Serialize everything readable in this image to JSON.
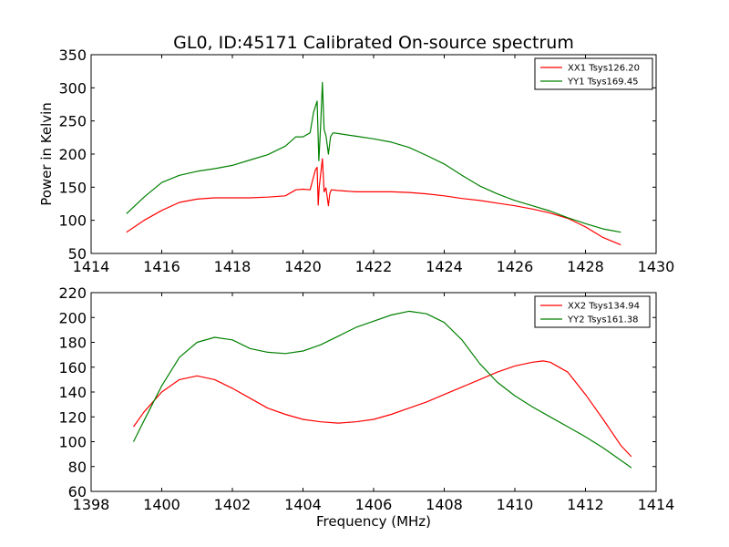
{
  "chart_data": [
    {
      "type": "line",
      "title": "GL0, ID:45171 Calibrated On-source spectrum",
      "xlabel": "",
      "ylabel": "Power in Kelvin",
      "xlim": [
        1414,
        1430
      ],
      "ylim": [
        50,
        350
      ],
      "xticks": [
        "1414",
        "1416",
        "1418",
        "1420",
        "1422",
        "1424",
        "1426",
        "1428",
        "1430"
      ],
      "yticks": [
        "50",
        "100",
        "150",
        "200",
        "250",
        "300",
        "350"
      ],
      "grid": false,
      "legend_position": "top-right",
      "series": [
        {
          "name": "XX1 Tsys126.20",
          "color": "#ff0000",
          "x": [
            1415.0,
            1415.5,
            1416.0,
            1416.5,
            1417.0,
            1417.5,
            1418.0,
            1418.5,
            1419.0,
            1419.5,
            1419.8,
            1420.0,
            1420.2,
            1420.35,
            1420.4,
            1420.43,
            1420.46,
            1420.55,
            1420.6,
            1420.65,
            1420.72,
            1420.76,
            1420.8,
            1421.0,
            1421.5,
            1422.0,
            1422.5,
            1423.0,
            1423.5,
            1424.0,
            1424.5,
            1425.0,
            1425.5,
            1426.0,
            1426.5,
            1427.0,
            1427.5,
            1428.0,
            1428.5,
            1429.0
          ],
          "y": [
            82,
            100,
            115,
            127,
            132,
            134,
            134,
            134,
            135,
            137,
            146,
            147,
            146,
            176,
            180,
            123,
            150,
            193,
            143,
            149,
            122,
            140,
            146,
            145,
            143,
            143,
            143,
            142,
            140,
            137,
            133,
            130,
            126,
            122,
            117,
            111,
            103,
            90,
            74,
            63
          ]
        },
        {
          "name": "YY1 Tsys169.45",
          "color": "#008000",
          "x": [
            1415.0,
            1415.5,
            1416.0,
            1416.5,
            1417.0,
            1417.5,
            1418.0,
            1418.5,
            1419.0,
            1419.5,
            1419.8,
            1420.0,
            1420.2,
            1420.3,
            1420.4,
            1420.45,
            1420.5,
            1420.55,
            1420.6,
            1420.65,
            1420.72,
            1420.78,
            1420.85,
            1421.0,
            1421.5,
            1422.0,
            1422.5,
            1423.0,
            1423.5,
            1424.0,
            1424.5,
            1425.0,
            1425.5,
            1426.0,
            1426.5,
            1427.0,
            1427.5,
            1428.0,
            1428.5,
            1429.0
          ],
          "y": [
            110,
            135,
            157,
            168,
            174,
            178,
            183,
            191,
            199,
            212,
            226,
            226,
            232,
            263,
            280,
            190,
            244,
            308,
            237,
            228,
            200,
            226,
            232,
            231,
            227,
            223,
            218,
            210,
            198,
            185,
            168,
            152,
            140,
            130,
            122,
            114,
            104,
            95,
            87,
            82
          ]
        }
      ]
    },
    {
      "type": "line",
      "title": "",
      "xlabel": "Frequency (MHz)",
      "ylabel": "",
      "xlim": [
        1398,
        1414
      ],
      "ylim": [
        60,
        220
      ],
      "xticks": [
        "1398",
        "1400",
        "1402",
        "1404",
        "1406",
        "1408",
        "1410",
        "1412",
        "1414"
      ],
      "yticks": [
        "60",
        "80",
        "100",
        "120",
        "140",
        "160",
        "180",
        "200",
        "220"
      ],
      "grid": false,
      "legend_position": "top-right",
      "series": [
        {
          "name": "XX2 Tsys134.94",
          "color": "#ff0000",
          "x": [
            1399.2,
            1399.5,
            1400.0,
            1400.5,
            1401.0,
            1401.5,
            1402.0,
            1402.5,
            1403.0,
            1403.5,
            1404.0,
            1404.5,
            1405.0,
            1405.5,
            1406.0,
            1406.5,
            1407.0,
            1407.5,
            1408.0,
            1408.5,
            1409.0,
            1409.5,
            1410.0,
            1410.5,
            1410.8,
            1411.0,
            1411.5,
            1412.0,
            1412.5,
            1413.0,
            1413.3
          ],
          "y": [
            112,
            124,
            140,
            150,
            153,
            150,
            143,
            135,
            127,
            122,
            118,
            116,
            115,
            116,
            118,
            122,
            127,
            132,
            138,
            144,
            150,
            156,
            161,
            164,
            165,
            164,
            156,
            138,
            118,
            97,
            88
          ]
        },
        {
          "name": "YY2 Tsys161.38",
          "color": "#008000",
          "x": [
            1399.2,
            1399.5,
            1400.0,
            1400.5,
            1401.0,
            1401.5,
            1402.0,
            1402.5,
            1403.0,
            1403.5,
            1404.0,
            1404.5,
            1405.0,
            1405.5,
            1406.0,
            1406.5,
            1407.0,
            1407.5,
            1408.0,
            1408.5,
            1409.0,
            1409.5,
            1410.0,
            1410.5,
            1411.0,
            1411.5,
            1412.0,
            1412.5,
            1413.0,
            1413.3
          ],
          "y": [
            100,
            117,
            145,
            168,
            180,
            184,
            182,
            175,
            172,
            171,
            173,
            178,
            185,
            192,
            197,
            202,
            205,
            203,
            196,
            182,
            163,
            148,
            137,
            128,
            120,
            112,
            104,
            95,
            85,
            79
          ]
        }
      ]
    }
  ]
}
